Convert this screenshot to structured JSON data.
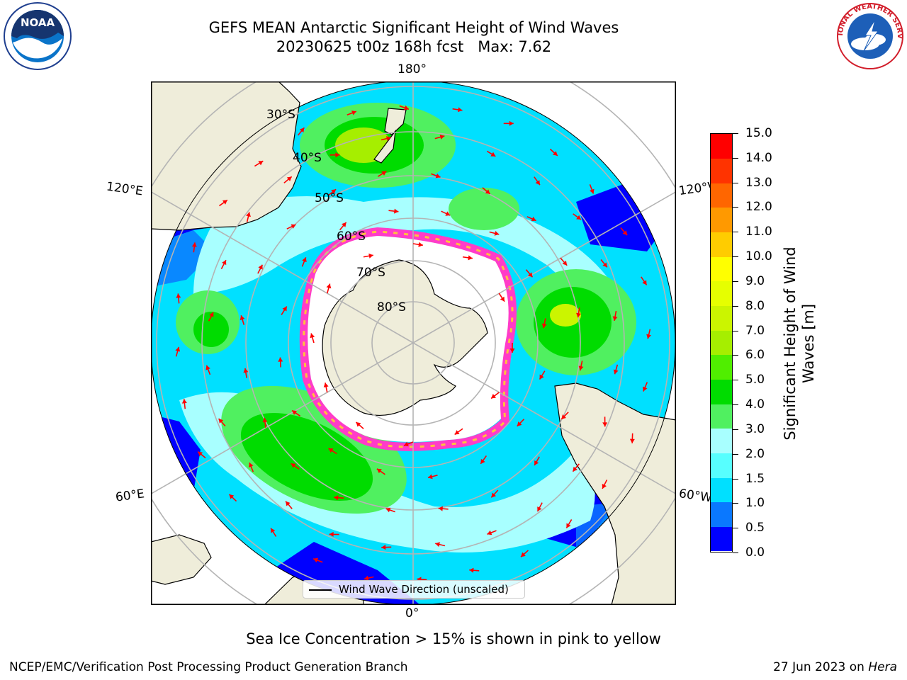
{
  "title": {
    "line1": "GEFS MEAN Antarctic Significant Height of Wind Waves",
    "line2": "20230625 t00z 168h fcst   Max: 7.62"
  },
  "logos": {
    "left": "noaa-logo",
    "left_text": "NOAA",
    "right": "nws-logo",
    "right_text": "NATIONAL WEATHER SERVICE"
  },
  "map": {
    "longitude_labels": {
      "top": "180°",
      "bottom": "0°",
      "upper_left": "120°E",
      "upper_right": "120°W",
      "lower_left": "60°E",
      "lower_right": "60°W"
    },
    "latitude_labels": [
      "30°S",
      "40°S",
      "50°S",
      "60°S",
      "70°S",
      "80°S"
    ]
  },
  "colorbar": {
    "title_line1": "Significant Height of Wind",
    "title_line2": "Waves [m]",
    "ticks": [
      "0.0",
      "0.5",
      "1.0",
      "1.5",
      "2.0",
      "3.0",
      "4.0",
      "5.0",
      "6.0",
      "7.0",
      "8.0",
      "9.0",
      "10.0",
      "11.0",
      "12.0",
      "13.0",
      "14.0",
      "15.0"
    ],
    "colors": [
      "#0000ff",
      "#0a78ff",
      "#00e0ff",
      "#57ffff",
      "#a8ffff",
      "#50f060",
      "#00dc00",
      "#50ee00",
      "#a6ee00",
      "#cbf500",
      "#e6ff00",
      "#ffff00",
      "#ffcc00",
      "#ff9900",
      "#ff6600",
      "#ff3300",
      "#ff0000"
    ]
  },
  "legend": {
    "label": "Wind Wave Direction (unscaled)"
  },
  "notes": {
    "sea_ice": "Sea Ice Concentration > 15% is shown in pink to yellow"
  },
  "footer": {
    "left": "NCEP/EMC/Verification Post Processing Product Generation Branch",
    "date": "27 Jun 2023 on",
    "machine": "Hera"
  }
}
